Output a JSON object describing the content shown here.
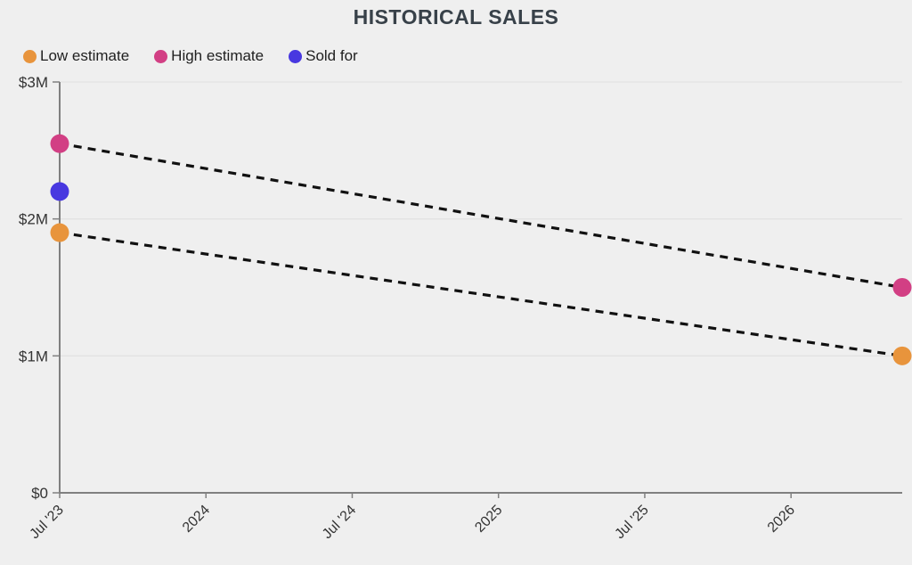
{
  "page": {
    "background_color": "#efefef",
    "title": "HISTORICAL SALES"
  },
  "chart_data": {
    "type": "scatter",
    "title": "HISTORICAL SALES",
    "xlabel": "",
    "ylabel": "",
    "grid": "horizontal",
    "legend_position": "top-left",
    "x_axis": {
      "min": 2023.5,
      "max": 2026.38,
      "tick_label_rotation_deg": -45,
      "ticks": [
        {
          "x": 2023.5,
          "label": "Jul '23"
        },
        {
          "x": 2024.0,
          "label": "2024"
        },
        {
          "x": 2024.5,
          "label": "Jul '24"
        },
        {
          "x": 2025.0,
          "label": "2025"
        },
        {
          "x": 2025.5,
          "label": "Jul '25"
        },
        {
          "x": 2026.0,
          "label": "2026"
        }
      ]
    },
    "y_axis": {
      "min": 0,
      "max": 3,
      "ticks": [
        {
          "v": 0,
          "label": "$0"
        },
        {
          "v": 1,
          "label": "$1M"
        },
        {
          "v": 2,
          "label": "$2M"
        },
        {
          "v": 3,
          "label": "$3M"
        }
      ]
    },
    "line_color": "#111111",
    "series": [
      {
        "name": "Low estimate",
        "color": "#e8943c",
        "marker": "circle",
        "line_style": "dashed",
        "points": [
          {
            "x": 2023.5,
            "y": 1.9
          },
          {
            "x": 2026.38,
            "y": 1.0
          }
        ]
      },
      {
        "name": "High estimate",
        "color": "#d23f84",
        "marker": "circle",
        "line_style": "dashed",
        "points": [
          {
            "x": 2023.5,
            "y": 2.55
          },
          {
            "x": 2026.38,
            "y": 1.5
          }
        ]
      },
      {
        "name": "Sold for",
        "color": "#4838e0",
        "marker": "circle",
        "line_style": "none",
        "points": [
          {
            "x": 2023.5,
            "y": 2.2
          }
        ]
      }
    ]
  }
}
